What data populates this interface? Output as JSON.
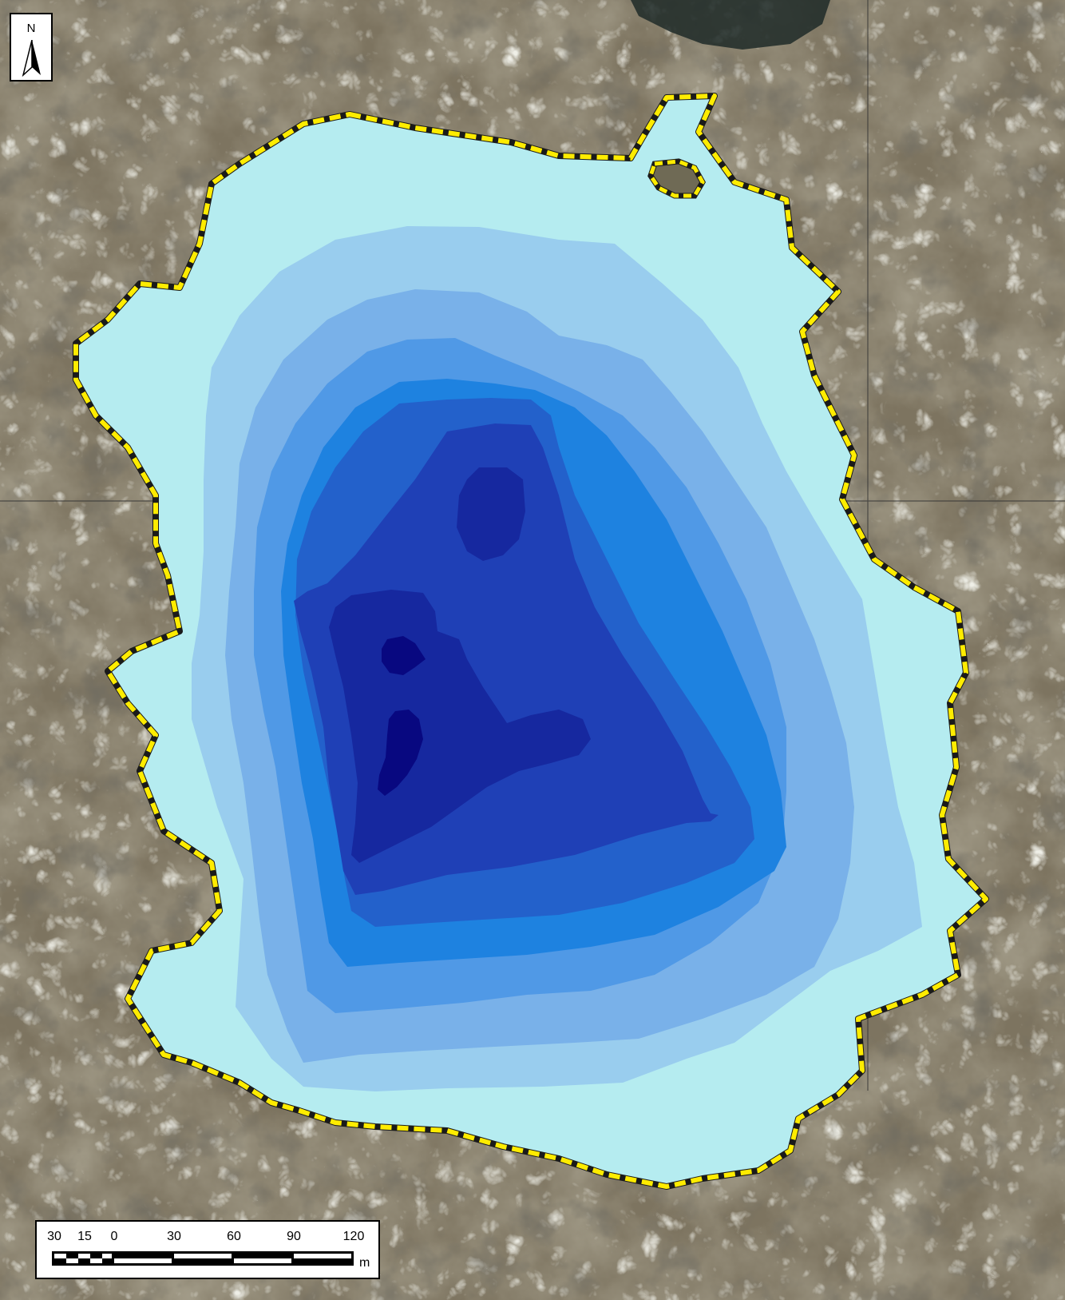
{
  "map": {
    "lake_name": "",
    "depth_class_colors": [
      "#b5ecf0",
      "#99cdee",
      "#79b1e9",
      "#5099e6",
      "#1e82e0",
      "#2361cb",
      "#1f40b6",
      "#16289f",
      "#080880"
    ],
    "shoreline_color": "#ffec00",
    "north_arrow": {
      "letter": "N"
    },
    "scale_bar": {
      "labels": [
        "30",
        "15",
        "0",
        "30",
        "60",
        "90",
        "120"
      ],
      "unit": "m"
    }
  }
}
